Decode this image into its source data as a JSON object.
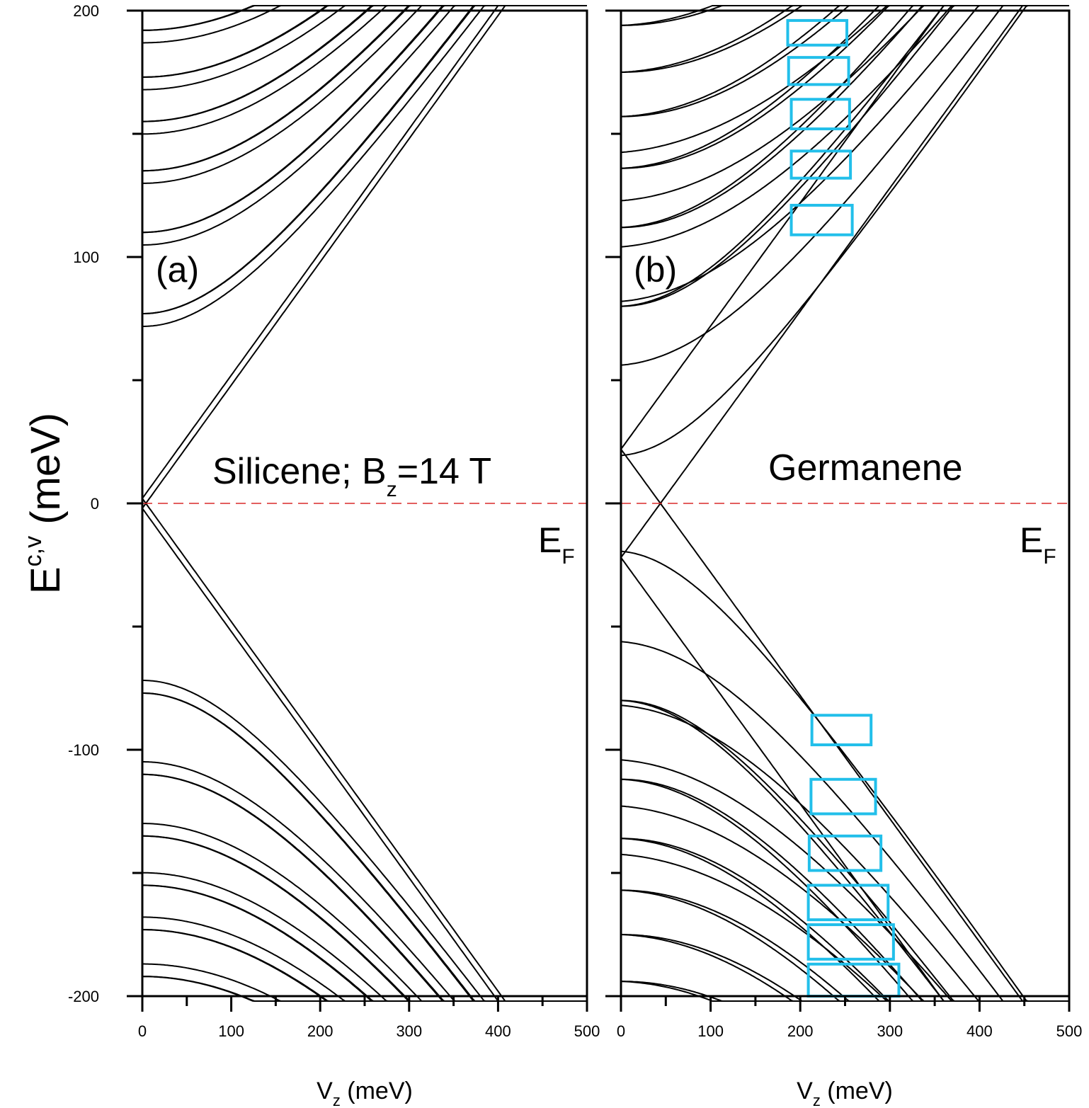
{
  "chart_data": [
    {
      "type": "line",
      "panel_label": "(a)",
      "annotation": {
        "name": "Silicene; B",
        "sub": "z",
        "rest": "=14 T"
      },
      "fermi_label": {
        "main": "E",
        "sub": "F"
      },
      "xlabel": {
        "main": "V",
        "sub": "z",
        "rest": " (meV)"
      },
      "ylabel": {
        "main": "E",
        "sup": "c,v",
        "rest": " (meV)"
      },
      "xlim": [
        0,
        500
      ],
      "ylim": [
        -200,
        200
      ],
      "x_ticks": [
        "0",
        "100",
        "200",
        "300",
        "400",
        "500"
      ],
      "y_ticks": [
        "200",
        "100",
        "0",
        "-100",
        "-200"
      ],
      "fermi_level": 0,
      "landau_levels_meV": [
        77,
        110,
        135,
        155,
        173,
        192
      ],
      "zero_mode_energy_meV": 2,
      "splitting_meV": 5,
      "highlight_boxes": []
    },
    {
      "type": "line",
      "panel_label": "(b)",
      "annotation": {
        "name": "Germanene"
      },
      "fermi_label": {
        "main": "E",
        "sub": "F"
      },
      "xlabel": {
        "main": "V",
        "sub": "z",
        "rest": " (meV)"
      },
      "xlim": [
        0,
        500
      ],
      "ylim": [
        -200,
        200
      ],
      "x_ticks": [
        "0",
        "100",
        "200",
        "300",
        "400",
        "500"
      ],
      "fermi_level": 0,
      "landau_levels_meV": [
        80,
        112,
        136,
        157,
        175,
        194
      ],
      "zero_mode_energy_meV": 22,
      "splitting_meV": 46,
      "highlight_color": "#22bfea",
      "highlight_boxes": [
        {
          "x": [
            186,
            252
          ],
          "y": [
            186,
            196
          ]
        },
        {
          "x": [
            187,
            254
          ],
          "y": [
            170,
            181
          ]
        },
        {
          "x": [
            190,
            255
          ],
          "y": [
            152,
            164
          ]
        },
        {
          "x": [
            190,
            256
          ],
          "y": [
            132,
            143
          ]
        },
        {
          "x": [
            190,
            258
          ],
          "y": [
            109,
            121
          ]
        },
        {
          "x": [
            213,
            279
          ],
          "y": [
            -98,
            -86
          ]
        },
        {
          "x": [
            212,
            284
          ],
          "y": [
            -126,
            -112
          ]
        },
        {
          "x": [
            210,
            290
          ],
          "y": [
            -149,
            -135
          ]
        },
        {
          "x": [
            209,
            298
          ],
          "y": [
            -169,
            -155
          ]
        },
        {
          "x": [
            209,
            304
          ],
          "y": [
            -185,
            -171
          ]
        },
        {
          "x": [
            209,
            310
          ],
          "y": [
            -200,
            -187
          ]
        }
      ]
    }
  ]
}
